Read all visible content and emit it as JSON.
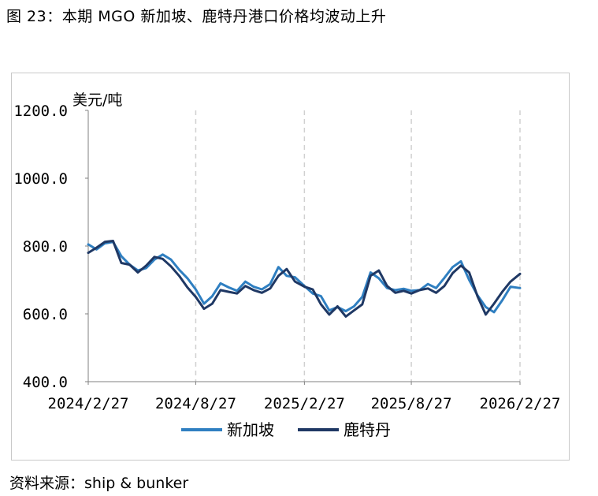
{
  "figure_title": "图 23：本期 MGO 新加坡、鹿特丹港口价格均波动上升",
  "source": "资料来源：ship & bunker",
  "chart_data": {
    "type": "line",
    "title": "",
    "ylabel": "美元/吨",
    "xlabel": "",
    "ylim": [
      400,
      1200
    ],
    "yticks": [
      "1200.0",
      "1000.0",
      "800.0",
      "600.0",
      "400.0"
    ],
    "xticks": [
      "2024/2/27",
      "2024/8/27",
      "2025/2/27",
      "2025/8/27",
      "2026/2/27"
    ],
    "x_range": [
      "2024-02-27",
      "2026-02-27"
    ],
    "grid": "vertical dashed",
    "legend_position": "bottom",
    "series": [
      {
        "name": "新加坡",
        "color": "#2f7fc1",
        "points": [
          [
            "2024-02-27",
            805
          ],
          [
            "2024-03-12",
            790
          ],
          [
            "2024-03-26",
            808
          ],
          [
            "2024-04-09",
            812
          ],
          [
            "2024-04-23",
            770
          ],
          [
            "2024-05-07",
            745
          ],
          [
            "2024-05-21",
            728
          ],
          [
            "2024-06-04",
            735
          ],
          [
            "2024-06-18",
            760
          ],
          [
            "2024-07-02",
            775
          ],
          [
            "2024-07-16",
            760
          ],
          [
            "2024-07-30",
            730
          ],
          [
            "2024-08-13",
            705
          ],
          [
            "2024-08-27",
            672
          ],
          [
            "2024-09-10",
            630
          ],
          [
            "2024-09-24",
            652
          ],
          [
            "2024-10-08",
            690
          ],
          [
            "2024-10-22",
            678
          ],
          [
            "2024-11-05",
            668
          ],
          [
            "2024-11-19",
            695
          ],
          [
            "2024-12-03",
            680
          ],
          [
            "2024-12-17",
            672
          ],
          [
            "2024-12-31",
            688
          ],
          [
            "2025-01-14",
            738
          ],
          [
            "2025-01-28",
            712
          ],
          [
            "2025-02-11",
            708
          ],
          [
            "2025-02-27",
            682
          ],
          [
            "2025-03-13",
            660
          ],
          [
            "2025-03-27",
            652
          ],
          [
            "2025-04-10",
            610
          ],
          [
            "2025-04-24",
            620
          ],
          [
            "2025-05-08",
            608
          ],
          [
            "2025-05-22",
            622
          ],
          [
            "2025-06-05",
            650
          ],
          [
            "2025-06-19",
            722
          ],
          [
            "2025-07-03",
            705
          ],
          [
            "2025-07-17",
            676
          ],
          [
            "2025-07-31",
            670
          ],
          [
            "2025-08-14",
            674
          ],
          [
            "2025-08-27",
            668
          ],
          [
            "2025-09-10",
            670
          ],
          [
            "2025-09-24",
            688
          ],
          [
            "2025-10-08",
            676
          ],
          [
            "2025-10-22",
            706
          ],
          [
            "2025-11-05",
            738
          ],
          [
            "2025-11-19",
            755
          ],
          [
            "2025-12-03",
            700
          ],
          [
            "2025-12-17",
            655
          ],
          [
            "2025-12-31",
            620
          ],
          [
            "2026-01-14",
            605
          ],
          [
            "2026-01-28",
            640
          ],
          [
            "2026-02-11",
            680
          ],
          [
            "2026-02-27",
            676
          ]
        ]
      },
      {
        "name": "鹿特丹",
        "color": "#1f3864",
        "points": [
          [
            "2024-02-27",
            780
          ],
          [
            "2024-03-12",
            795
          ],
          [
            "2024-03-26",
            812
          ],
          [
            "2024-04-09",
            815
          ],
          [
            "2024-04-23",
            750
          ],
          [
            "2024-05-07",
            745
          ],
          [
            "2024-05-21",
            722
          ],
          [
            "2024-06-04",
            742
          ],
          [
            "2024-06-18",
            768
          ],
          [
            "2024-07-02",
            762
          ],
          [
            "2024-07-16",
            740
          ],
          [
            "2024-07-30",
            712
          ],
          [
            "2024-08-13",
            678
          ],
          [
            "2024-08-27",
            650
          ],
          [
            "2024-09-10",
            615
          ],
          [
            "2024-09-24",
            630
          ],
          [
            "2024-10-08",
            670
          ],
          [
            "2024-10-22",
            665
          ],
          [
            "2024-11-05",
            660
          ],
          [
            "2024-11-19",
            682
          ],
          [
            "2024-12-03",
            670
          ],
          [
            "2024-12-17",
            662
          ],
          [
            "2024-12-31",
            675
          ],
          [
            "2025-01-14",
            712
          ],
          [
            "2025-01-28",
            732
          ],
          [
            "2025-02-11",
            695
          ],
          [
            "2025-02-27",
            680
          ],
          [
            "2025-03-13",
            672
          ],
          [
            "2025-03-27",
            628
          ],
          [
            "2025-04-10",
            598
          ],
          [
            "2025-04-24",
            622
          ],
          [
            "2025-05-08",
            592
          ],
          [
            "2025-05-22",
            610
          ],
          [
            "2025-06-05",
            628
          ],
          [
            "2025-06-19",
            712
          ],
          [
            "2025-07-03",
            728
          ],
          [
            "2025-07-17",
            682
          ],
          [
            "2025-07-31",
            662
          ],
          [
            "2025-08-14",
            668
          ],
          [
            "2025-08-27",
            660
          ],
          [
            "2025-09-10",
            670
          ],
          [
            "2025-09-24",
            675
          ],
          [
            "2025-10-08",
            662
          ],
          [
            "2025-10-22",
            682
          ],
          [
            "2025-11-05",
            720
          ],
          [
            "2025-11-19",
            742
          ],
          [
            "2025-12-03",
            722
          ],
          [
            "2025-12-17",
            652
          ],
          [
            "2025-12-31",
            598
          ],
          [
            "2026-01-14",
            630
          ],
          [
            "2026-01-28",
            665
          ],
          [
            "2026-02-11",
            695
          ],
          [
            "2026-02-27",
            718
          ]
        ]
      }
    ]
  }
}
